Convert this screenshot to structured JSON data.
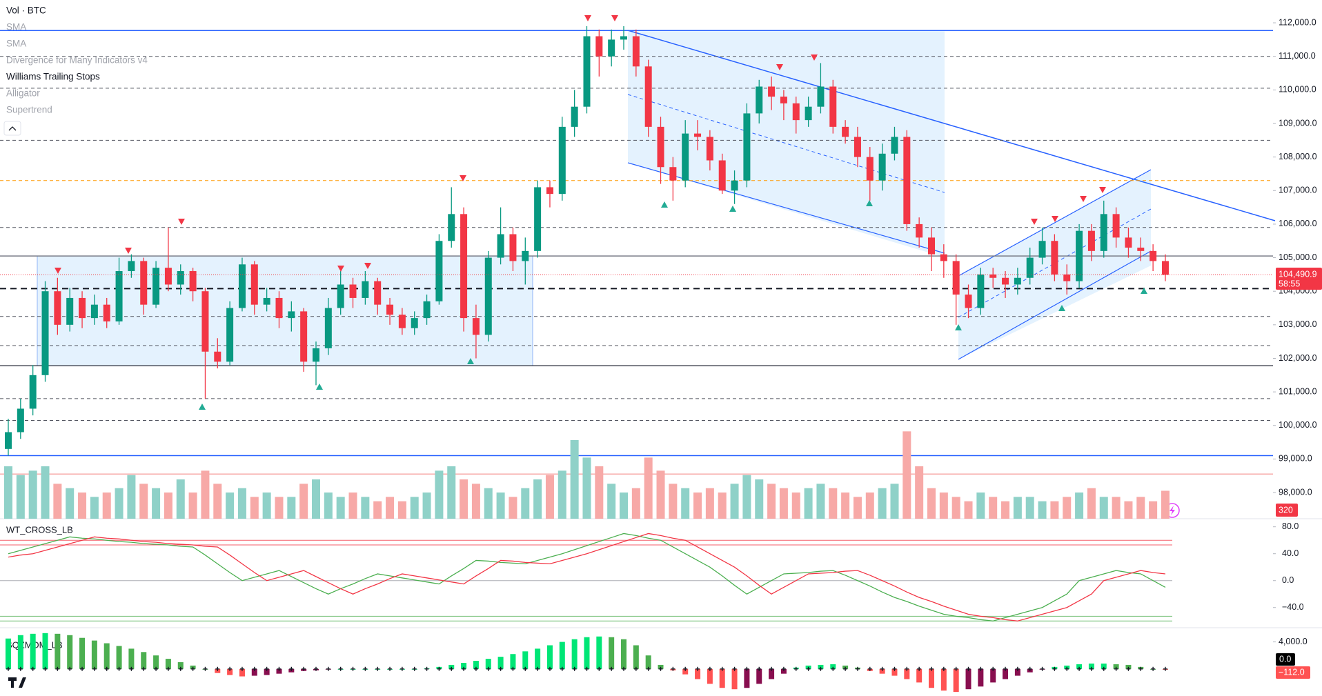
{
  "chart_data": [
    {
      "type": "candlestick",
      "volume_label": "Vol · BTC",
      "indicators": [
        "SMA",
        "SMA",
        "Divergence for Many Indicators v4",
        "Williams Trailing Stops",
        "Alligator",
        "Supertrend"
      ],
      "hidden": [
        true,
        true,
        true,
        false,
        true,
        true
      ],
      "open": [
        99300,
        99800,
        100500,
        101500,
        104000,
        103000,
        103800,
        103200,
        103600,
        103100,
        104600,
        104900,
        103600,
        104700,
        104200,
        104600,
        104000,
        102200,
        101900,
        103500,
        104800,
        103600,
        103800,
        103200,
        103400,
        101900,
        102300,
        103500,
        104200,
        103800,
        104300,
        103600,
        103300,
        102900,
        103200,
        103700,
        105500,
        106300,
        103200,
        102700,
        105000,
        105700,
        104900,
        105200,
        107100,
        106900,
        108900,
        109500,
        111600,
        111000,
        111500,
        111600,
        110700,
        108900,
        107700,
        107300,
        108700,
        108600,
        107900,
        107000,
        107300,
        109300,
        110100,
        109800,
        109600,
        109100,
        109500,
        110100,
        108900,
        108600,
        108000,
        107300,
        108100,
        108600,
        106000,
        105600,
        105100,
        104900,
        103900,
        103500,
        104500,
        104400,
        104200,
        104400,
        105000,
        105500,
        104500,
        104300,
        105800,
        105200,
        106300,
        105600,
        105300,
        105200,
        104900
      ],
      "high": [
        100200,
        100800,
        101800,
        104300,
        104400,
        104100,
        104000,
        103900,
        103800,
        105000,
        105100,
        105000,
        104900,
        105900,
        104800,
        104700,
        104100,
        102600,
        103700,
        105000,
        104900,
        104100,
        104000,
        103700,
        103500,
        102500,
        103800,
        104600,
        104400,
        104600,
        104400,
        103800,
        103500,
        103400,
        103900,
        105700,
        107100,
        106500,
        103600,
        105200,
        106500,
        105900,
        105600,
        107300,
        107300,
        109200,
        110000,
        111900,
        111800,
        111800,
        111900,
        111800,
        110900,
        109200,
        108000,
        109100,
        109100,
        108800,
        108100,
        107600,
        109600,
        110300,
        110400,
        110000,
        109800,
        109800,
        110800,
        110300,
        109100,
        108900,
        108300,
        108400,
        108900,
        108800,
        106200,
        105900,
        105400,
        105100,
        104200,
        104700,
        104700,
        104600,
        104700,
        105300,
        105900,
        105700,
        104800,
        106000,
        106000,
        106700,
        106500,
        105900,
        105600,
        105400,
        105100
      ],
      "low": [
        99100,
        99600,
        100300,
        101300,
        102700,
        102800,
        102900,
        103000,
        102900,
        103000,
        104400,
        103300,
        103500,
        104000,
        103900,
        103700,
        100800,
        101700,
        101800,
        103400,
        103300,
        103400,
        102900,
        102800,
        101600,
        101200,
        102100,
        103300,
        103500,
        103600,
        103300,
        103000,
        102700,
        102700,
        103000,
        103600,
        105300,
        102800,
        102000,
        102500,
        104800,
        104600,
        104200,
        105000,
        106500,
        106700,
        108600,
        109300,
        110400,
        110700,
        111200,
        110400,
        108600,
        107200,
        106700,
        107100,
        108200,
        107600,
        106900,
        106600,
        107100,
        109000,
        109400,
        109100,
        108700,
        108900,
        109300,
        108700,
        108400,
        107700,
        106700,
        107000,
        107900,
        105800,
        105300,
        104600,
        104400,
        103000,
        103200,
        103300,
        104100,
        103800,
        103900,
        104200,
        104800,
        104300,
        103900,
        104100,
        104900,
        105000,
        105300,
        105000,
        104900,
        104600,
        104300
      ],
      "close": [
        99800,
        100500,
        101500,
        104000,
        103000,
        103800,
        103200,
        103600,
        103100,
        104600,
        104900,
        103600,
        104700,
        104200,
        104600,
        104000,
        102200,
        101900,
        103500,
        104800,
        103600,
        103800,
        103200,
        103400,
        101900,
        102300,
        103500,
        104200,
        103800,
        104300,
        103600,
        103300,
        102900,
        103200,
        103700,
        105500,
        106300,
        103200,
        102700,
        105000,
        105700,
        104900,
        105200,
        107100,
        106900,
        108900,
        109500,
        111600,
        111000,
        111500,
        111600,
        110700,
        108900,
        107700,
        107300,
        108700,
        108600,
        107900,
        107000,
        107300,
        109300,
        110100,
        109800,
        109600,
        109100,
        109500,
        110100,
        108900,
        108600,
        108000,
        107300,
        108100,
        108600,
        106000,
        105600,
        105100,
        104900,
        103900,
        103500,
        104500,
        104400,
        104200,
        104400,
        105000,
        105500,
        104500,
        104300,
        105800,
        105200,
        106300,
        105600,
        105300,
        105200,
        104900,
        104490.9
      ],
      "volume": [
        600,
        500,
        550,
        600,
        400,
        350,
        300,
        250,
        300,
        350,
        500,
        400,
        350,
        300,
        450,
        300,
        550,
        400,
        300,
        350,
        250,
        300,
        250,
        250,
        400,
        450,
        300,
        250,
        300,
        250,
        200,
        250,
        200,
        250,
        300,
        550,
        600,
        450,
        400,
        350,
        300,
        250,
        350,
        450,
        500,
        550,
        900,
        700,
        600,
        400,
        300,
        350,
        700,
        550,
        400,
        350,
        300,
        350,
        300,
        400,
        500,
        450,
        400,
        350,
        300,
        350,
        400,
        350,
        300,
        250,
        300,
        350,
        400,
        1000,
        600,
        350,
        300,
        250,
        200,
        300,
        250,
        200,
        250,
        250,
        200,
        200,
        250,
        300,
        350,
        250,
        250,
        200,
        250,
        200,
        320
      ],
      "volume_lim": [
        0,
        1500
      ],
      "up_color": "#089981",
      "down_color": "#f23645",
      "volume_up_color": "#8fd1c8",
      "volume_down_color": "#f7a9a7",
      "price_label": "104,490.9",
      "countdown": "58:55",
      "ylim": [
        97220,
        112680
      ],
      "yticks": [
        {
          "value": 112000,
          "label": "112,000.0"
        },
        {
          "value": 111000,
          "label": "111,000.0"
        },
        {
          "value": 110000,
          "label": "110,000.0"
        },
        {
          "value": 109000,
          "label": "109,000.0"
        },
        {
          "value": 108000,
          "label": "108,000.0"
        },
        {
          "value": 107000,
          "label": "107,000.0"
        },
        {
          "value": 106000,
          "label": "106,000.0"
        },
        {
          "value": 105000,
          "label": "105,000.0"
        },
        {
          "value": 104000,
          "label": "104,000.0"
        },
        {
          "value": 103000,
          "label": "103,000.0"
        },
        {
          "value": 102000,
          "label": "102,000.0"
        },
        {
          "value": 101000,
          "label": "101,000.0"
        },
        {
          "value": 100000,
          "label": "100,000.0"
        },
        {
          "value": 99000,
          "label": "99,000.0"
        },
        {
          "value": 98000,
          "label": "98,000.0"
        }
      ],
      "levels": [
        {
          "value": 111770,
          "style": "solid",
          "color": "#2962ff"
        },
        {
          "value": 111000,
          "style": "dashed",
          "color": "#50535e"
        },
        {
          "value": 110050,
          "style": "dashed",
          "color": "#50535e"
        },
        {
          "value": 108500,
          "style": "dashed",
          "color": "#50535e"
        },
        {
          "value": 107300,
          "style": "dashed",
          "color": "#ff9800"
        },
        {
          "value": 105900,
          "style": "dashed",
          "color": "#50535e"
        },
        {
          "value": 105050,
          "style": "solid",
          "color": "#787b86"
        },
        {
          "value": 104080,
          "style": "heavy-dashed",
          "color": "#131722"
        },
        {
          "value": 103250,
          "style": "dashed",
          "color": "#50535e"
        },
        {
          "value": 102380,
          "style": "dashed",
          "color": "#50535e"
        },
        {
          "value": 101780,
          "style": "solid",
          "color": "#434651"
        },
        {
          "value": 100800,
          "style": "dashed",
          "color": "#50535e"
        },
        {
          "value": 100150,
          "style": "dashed",
          "color": "#50535e"
        },
        {
          "value": 99100,
          "style": "solid",
          "color": "#2962ff"
        },
        {
          "value": 98550,
          "style": "solid",
          "color": "#f7a9a7"
        }
      ]
    },
    {
      "type": "line",
      "title": "WT_CROSS_LB",
      "series": [
        {
          "color": "#4caf50",
          "values": [
            40,
            45,
            50,
            55,
            60,
            65,
            63,
            62,
            60,
            58,
            57,
            55,
            54,
            53,
            51,
            50,
            38,
            25,
            12,
            0,
            5,
            10,
            15,
            6,
            -3,
            -12,
            -20,
            -12,
            -5,
            3,
            10,
            7,
            4,
            1,
            -2,
            -5,
            7,
            18,
            30,
            29,
            27,
            26,
            25,
            30,
            35,
            40,
            46,
            52,
            58,
            64,
            70,
            67,
            63,
            60,
            50,
            40,
            30,
            20,
            7,
            -7,
            -20,
            -10,
            0,
            10,
            11,
            12,
            14,
            15,
            8,
            0,
            -8,
            -17,
            -25,
            -31,
            -38,
            -44,
            -50,
            -53,
            -55,
            -58,
            -60,
            -55,
            -50,
            -45,
            -40,
            -30,
            -20,
            0,
            5,
            10,
            15,
            12,
            10,
            0,
            -10
          ]
        },
        {
          "color": "#f23645",
          "values": [
            35,
            38,
            40,
            45,
            50,
            55,
            60,
            65,
            63,
            62,
            60,
            58,
            57,
            55,
            54,
            53,
            51,
            50,
            38,
            25,
            12,
            0,
            5,
            10,
            15,
            6,
            -3,
            -12,
            -20,
            -12,
            -5,
            3,
            10,
            7,
            4,
            1,
            -2,
            -5,
            7,
            18,
            30,
            29,
            27,
            26,
            25,
            30,
            35,
            40,
            46,
            52,
            58,
            64,
            70,
            67,
            63,
            60,
            50,
            40,
            30,
            20,
            7,
            -7,
            -20,
            -10,
            0,
            10,
            11,
            12,
            14,
            15,
            8,
            0,
            -8,
            -17,
            -25,
            -31,
            -38,
            -44,
            -50,
            -53,
            -55,
            -58,
            -60,
            -55,
            -50,
            -45,
            -40,
            -30,
            -20,
            0,
            5,
            10,
            15,
            12,
            10
          ]
        }
      ],
      "levels": [
        {
          "value": 60,
          "color": "#f23645"
        },
        {
          "value": 53,
          "color": "#f23645"
        },
        {
          "value": 0,
          "color": "#9598a1"
        },
        {
          "value": -53,
          "color": "#4caf50"
        },
        {
          "value": -60,
          "color": "#4caf50"
        }
      ],
      "ylim": [
        -70,
        92
      ],
      "yticks": [
        {
          "value": 80,
          "label": "80.0"
        },
        {
          "value": 40,
          "label": "40.0"
        },
        {
          "value": 0,
          "label": "0.0"
        },
        {
          "value": -40,
          "label": "−40.0"
        }
      ]
    },
    {
      "type": "bar",
      "title": "SQZMOM_LB",
      "values": [
        4500,
        5000,
        5200,
        5300,
        5200,
        5000,
        4600,
        4200,
        3800,
        3400,
        3000,
        2500,
        2000,
        1500,
        1000,
        500,
        0,
        -600,
        -900,
        -1100,
        -1000,
        -900,
        -700,
        -500,
        -300,
        -200,
        -100,
        0,
        0,
        0,
        0,
        0,
        0,
        0,
        100,
        300,
        600,
        900,
        1200,
        1500,
        1800,
        2200,
        2600,
        3000,
        3500,
        4000,
        4400,
        4700,
        4800,
        4700,
        4400,
        3500,
        2000,
        600,
        -200,
        -800,
        -1500,
        -2200,
        -2800,
        -3000,
        -2800,
        -2200,
        -1500,
        -700,
        200,
        500,
        600,
        700,
        500,
        200,
        -300,
        -700,
        -1000,
        -1500,
        -2000,
        -2800,
        -3200,
        -3400,
        -3000,
        -2600,
        -2000,
        -1500,
        -1000,
        -500,
        -100,
        300,
        500,
        700,
        800,
        800,
        700,
        600,
        300,
        0,
        -112
      ],
      "colors": {
        "up_rising": "#00e676",
        "up_falling": "#4caf50",
        "down_falling": "#ff5252",
        "down_rising": "#880e4f"
      },
      "signal_label": "0.0",
      "last_value_label": "−112.0",
      "ylim": [
        -4000,
        6100
      ],
      "yticks": [
        {
          "value": 4000,
          "label": "4,000.0"
        }
      ]
    }
  ]
}
